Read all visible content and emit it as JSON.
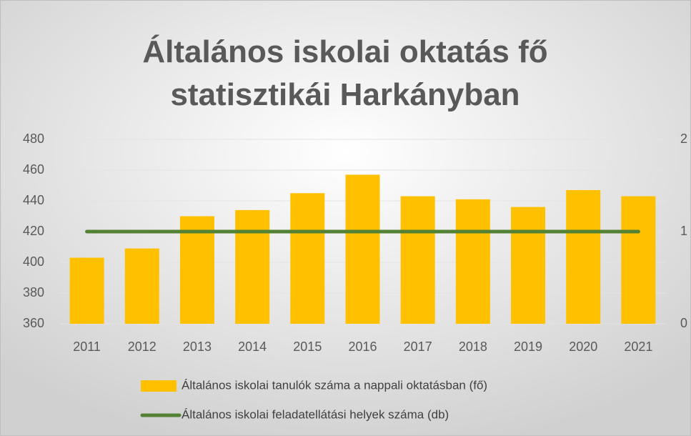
{
  "chart_data": {
    "type": "bar",
    "title": "Általános iskolai oktatás fő statisztikái Harkányban",
    "categories": [
      "2011",
      "2012",
      "2013",
      "2014",
      "2015",
      "2016",
      "2017",
      "2018",
      "2019",
      "2020",
      "2021"
    ],
    "series": [
      {
        "name": "Általános iskolai tanulók száma a nappali oktatásban (fő)",
        "color": "#ffc000",
        "type": "bar",
        "values": [
          403,
          409,
          430,
          434,
          445,
          457,
          443,
          441,
          436,
          447,
          443
        ]
      },
      {
        "name": "Általános iskolai feladatellátási helyek száma (db)",
        "color": "#548235",
        "type": "line",
        "axis": "y2",
        "values": [
          1,
          1,
          1,
          1,
          1,
          1,
          1,
          1,
          1,
          1,
          1
        ]
      }
    ],
    "ylim": [
      360,
      480
    ],
    "yticks": [
      360,
      380,
      400,
      420,
      440,
      460,
      480
    ],
    "y2lim": [
      0,
      2
    ],
    "y2ticks": [
      0,
      1,
      2
    ],
    "grid": true,
    "legend": "bottom"
  }
}
